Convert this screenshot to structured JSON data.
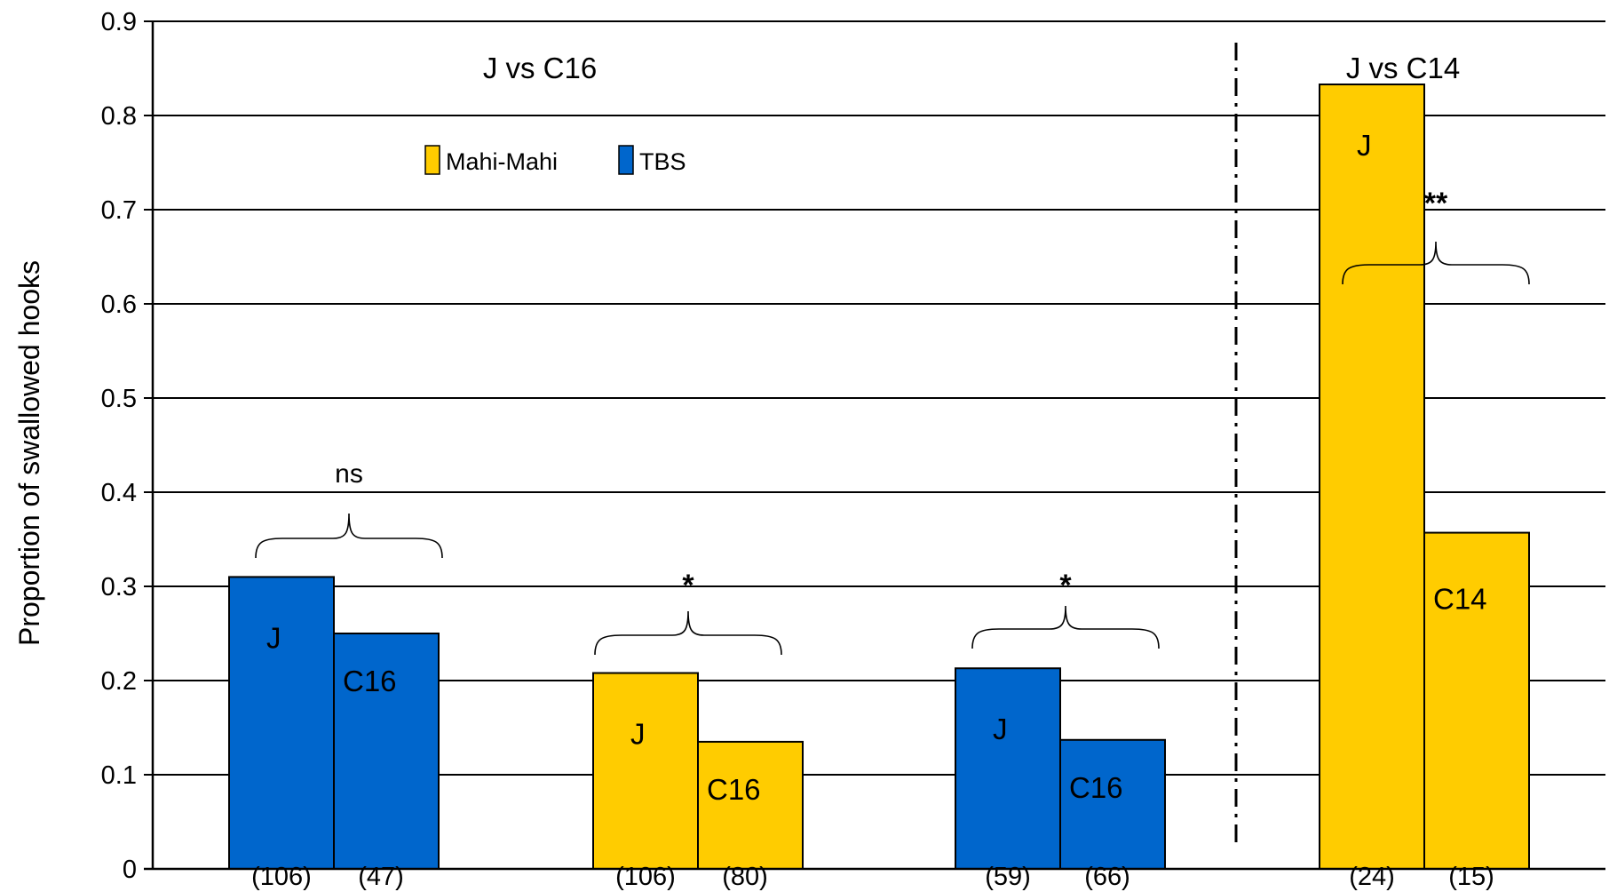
{
  "chart_data": {
    "type": "bar",
    "ylabel": "Proportion of swallowed hooks",
    "xlabel": "",
    "ylim": [
      0,
      0.9
    ],
    "yticks": [
      "0",
      "0.1",
      "0.2",
      "0.3",
      "0.4",
      "0.5",
      "0.6",
      "0.7",
      "0.8",
      "0.9"
    ],
    "grid": true,
    "legend": {
      "position": "top-left",
      "entries": [
        {
          "name": "Mahi-Mahi",
          "color": "#FFCC00"
        },
        {
          "name": "TBS",
          "color": "#0066CC"
        }
      ]
    },
    "section_titles": [
      "J vs C16",
      "J vs C14"
    ],
    "groups": [
      {
        "species": "TBS",
        "color": "#0066CC",
        "significance": "ns",
        "bars": [
          {
            "label": "J",
            "value": 0.31,
            "n": "(106)"
          },
          {
            "label": "C16",
            "value": 0.25,
            "n": "(47)"
          }
        ]
      },
      {
        "species": "Mahi-Mahi",
        "color": "#FFCC00",
        "significance": "*",
        "bars": [
          {
            "label": "J",
            "value": 0.208,
            "n": "(106)"
          },
          {
            "label": "C16",
            "value": 0.135,
            "n": "(80)"
          }
        ]
      },
      {
        "species": "TBS",
        "color": "#0066CC",
        "significance": "*",
        "bars": [
          {
            "label": "J",
            "value": 0.213,
            "n": "(59)"
          },
          {
            "label": "C16",
            "value": 0.137,
            "n": "(66)"
          }
        ]
      },
      {
        "species": "Mahi-Mahi",
        "color": "#FFCC00",
        "significance": "**",
        "bars": [
          {
            "label": "J",
            "value": 0.833,
            "n": "(24)"
          },
          {
            "label": "C14",
            "value": 0.357,
            "n": "(15)"
          }
        ]
      }
    ]
  }
}
